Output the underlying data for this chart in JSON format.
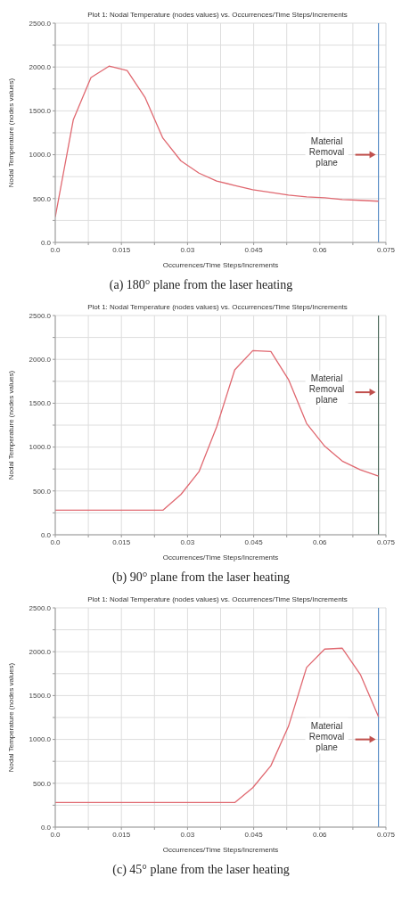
{
  "chart_data": [
    {
      "type": "line",
      "title": "Plot 1: Nodal Temperature (nodes values) vs. Occurrences/Time Steps/Increments",
      "xlabel": "Occurrences/Time Steps/Increments",
      "ylabel": "Nodal Temperature (nodes values)",
      "annotations": [
        "(a) 180° plane from the laser heating",
        "Material Removal plane"
      ],
      "x": [
        0,
        0.0041,
        0.0081,
        0.0122,
        0.0163,
        0.0204,
        0.0244,
        0.0285,
        0.0326,
        0.0366,
        0.0407,
        0.0448,
        0.0489,
        0.0529,
        0.057,
        0.0611,
        0.0651,
        0.0692,
        0.0733
      ],
      "series": [
        {
          "color": "#e06870",
          "values": [
            290,
            1400,
            1880,
            2010,
            1960,
            1650,
            1190,
            930,
            790,
            700,
            650,
            600,
            570,
            540,
            520,
            510,
            490,
            480,
            470
          ]
        }
      ],
      "xlim": [
        0,
        0.075
      ],
      "ylim": [
        0,
        2500
      ],
      "xticks": [
        {
          "value": 0,
          "label": "0.0"
        },
        {
          "value": 0.0075,
          "label": null
        },
        0.015,
        {
          "value": 0.0225,
          "label": null
        },
        0.03,
        {
          "value": 0.0375,
          "label": null
        },
        0.045,
        {
          "value": 0.0525,
          "label": null
        },
        0.06,
        {
          "value": 0.0675,
          "label": null
        },
        0.075
      ],
      "yticks": [
        {
          "value": 0,
          "label": "0.0"
        },
        {
          "value": 250,
          "label": null
        },
        {
          "value": 500,
          "label": "500.0"
        },
        {
          "value": 750,
          "label": null
        },
        {
          "value": 1000,
          "label": "1000.0"
        },
        {
          "value": 1250,
          "label": null
        },
        {
          "value": 1500,
          "label": "1500.0"
        },
        {
          "value": 1750,
          "label": null
        },
        {
          "value": 2000,
          "label": "2000.0"
        },
        {
          "value": 2250,
          "label": null
        },
        {
          "value": 2500,
          "label": "2500.0"
        }
      ],
      "grid": true,
      "ref_lines": [
        {
          "axis": "x",
          "value": 0.0733,
          "color": "#5b8fc7"
        }
      ]
    },
    {
      "type": "line",
      "title": "Plot 1: Nodal Temperature (nodes values) vs. Occurrences/Time Steps/Increments",
      "xlabel": "Occurrences/Time Steps/Increments",
      "ylabel": "Nodal Temperature (nodes values)",
      "annotations": [
        "(b) 90° plane from the laser heating",
        "Material Removal plane"
      ],
      "x": [
        0,
        0.0041,
        0.0081,
        0.0122,
        0.0163,
        0.0204,
        0.0244,
        0.0285,
        0.0326,
        0.0366,
        0.0407,
        0.0448,
        0.0489,
        0.0529,
        0.057,
        0.0611,
        0.0651,
        0.0692,
        0.0733
      ],
      "series": [
        {
          "color": "#e06870",
          "values": [
            280,
            280,
            280,
            280,
            280,
            280,
            280,
            460,
            720,
            1230,
            1880,
            2100,
            2090,
            1770,
            1270,
            1010,
            840,
            740,
            670
          ]
        }
      ],
      "xlim": [
        0,
        0.075
      ],
      "ylim": [
        0,
        2500
      ],
      "xticks": [
        {
          "value": 0,
          "label": "0.0"
        },
        {
          "value": 0.0075,
          "label": null
        },
        0.015,
        {
          "value": 0.0225,
          "label": null
        },
        0.03,
        {
          "value": 0.0375,
          "label": null
        },
        0.045,
        {
          "value": 0.0525,
          "label": null
        },
        0.06,
        {
          "value": 0.0675,
          "label": null
        },
        0.075
      ],
      "yticks": [
        {
          "value": 0,
          "label": "0.0"
        },
        {
          "value": 250,
          "label": null
        },
        {
          "value": 500,
          "label": "500.0"
        },
        {
          "value": 750,
          "label": null
        },
        {
          "value": 1000,
          "label": "1000.0"
        },
        {
          "value": 1250,
          "label": null
        },
        {
          "value": 1500,
          "label": "1500.0"
        },
        {
          "value": 1750,
          "label": null
        },
        {
          "value": 2000,
          "label": "2000.0"
        },
        {
          "value": 2250,
          "label": null
        },
        {
          "value": 2500,
          "label": "2500.0"
        }
      ],
      "grid": true,
      "ref_lines": [
        {
          "axis": "x",
          "value": 0.0733,
          "color": "#4d6b5c"
        }
      ]
    },
    {
      "type": "line",
      "title": "Plot 1: Nodal Temperature (nodes values) vs. Occurrences/Time Steps/Increments",
      "xlabel": "Occurrences/Time Steps/Increments",
      "ylabel": "Nodal Temperature (nodes values)",
      "annotations": [
        "(c) 45° plane from the laser heating",
        "Material Removal plane"
      ],
      "x": [
        0,
        0.0041,
        0.0081,
        0.0122,
        0.0163,
        0.0204,
        0.0244,
        0.0285,
        0.0326,
        0.0366,
        0.0407,
        0.0448,
        0.0489,
        0.0529,
        0.057,
        0.0611,
        0.0651,
        0.0692,
        0.0733
      ],
      "series": [
        {
          "color": "#e06870",
          "values": [
            280,
            280,
            280,
            280,
            280,
            280,
            280,
            280,
            280,
            280,
            280,
            450,
            700,
            1150,
            1820,
            2030,
            2040,
            1740,
            1260
          ]
        }
      ],
      "xlim": [
        0,
        0.075
      ],
      "ylim": [
        0,
        2500
      ],
      "xticks": [
        {
          "value": 0,
          "label": "0.0"
        },
        {
          "value": 0.0075,
          "label": null
        },
        0.015,
        {
          "value": 0.0225,
          "label": null
        },
        0.03,
        {
          "value": 0.0375,
          "label": null
        },
        0.045,
        {
          "value": 0.0525,
          "label": null
        },
        0.06,
        {
          "value": 0.0675,
          "label": null
        },
        0.075
      ],
      "yticks": [
        {
          "value": 0,
          "label": "0.0"
        },
        {
          "value": 250,
          "label": null
        },
        {
          "value": 500,
          "label": "500.0"
        },
        {
          "value": 750,
          "label": null
        },
        {
          "value": 1000,
          "label": "1000.0"
        },
        {
          "value": 1250,
          "label": null
        },
        {
          "value": 1500,
          "label": "1500.0"
        },
        {
          "value": 1750,
          "label": null
        },
        {
          "value": 2000,
          "label": "2000.0"
        },
        {
          "value": 2250,
          "label": null
        },
        {
          "value": 2500,
          "label": "2500.0"
        }
      ],
      "grid": true,
      "ref_lines": [
        {
          "axis": "x",
          "value": 0.0733,
          "color": "#5b8fc7"
        }
      ]
    }
  ]
}
